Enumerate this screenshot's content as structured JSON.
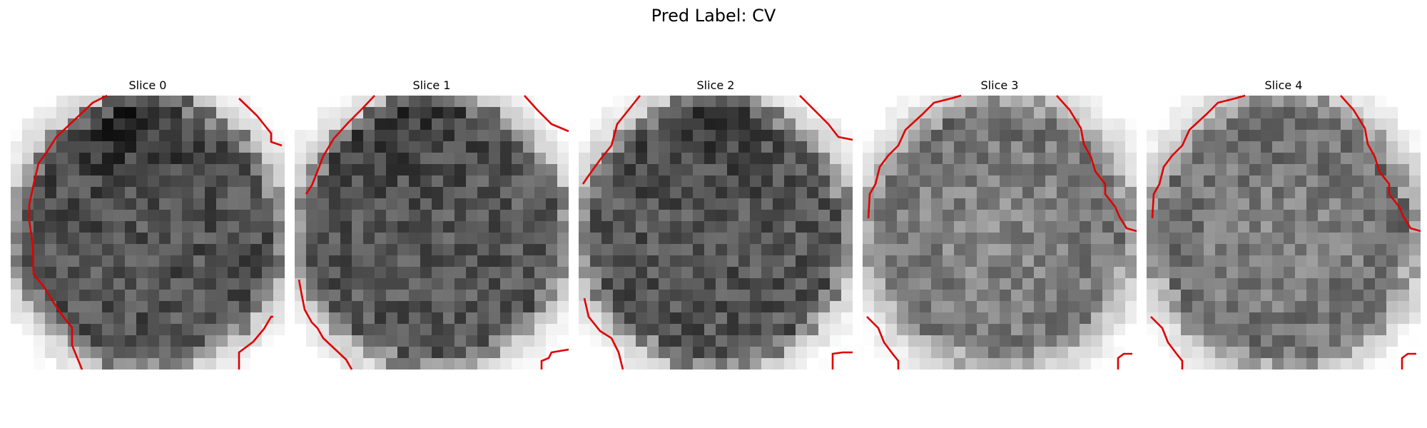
{
  "suptitle": "Pred Label: CV",
  "contour_color": "#e00000",
  "panels": [
    {
      "title": "Slice 0",
      "seed": 11,
      "base": 0.32,
      "dark_top": 0.18,
      "bright_blob": 0.0
    },
    {
      "title": "Slice 1",
      "seed": 23,
      "base": 0.34,
      "dark_top": 0.14,
      "bright_blob": 0.0
    },
    {
      "title": "Slice 2",
      "seed": 37,
      "base": 0.33,
      "dark_top": 0.12,
      "bright_blob": 0.0
    },
    {
      "title": "Slice 3",
      "seed": 41,
      "base": 0.46,
      "dark_top": 0.05,
      "bright_blob": 0.08
    },
    {
      "title": "Slice 4",
      "seed": 53,
      "base": 0.44,
      "dark_top": 0.05,
      "bright_blob": 0.08
    }
  ]
}
